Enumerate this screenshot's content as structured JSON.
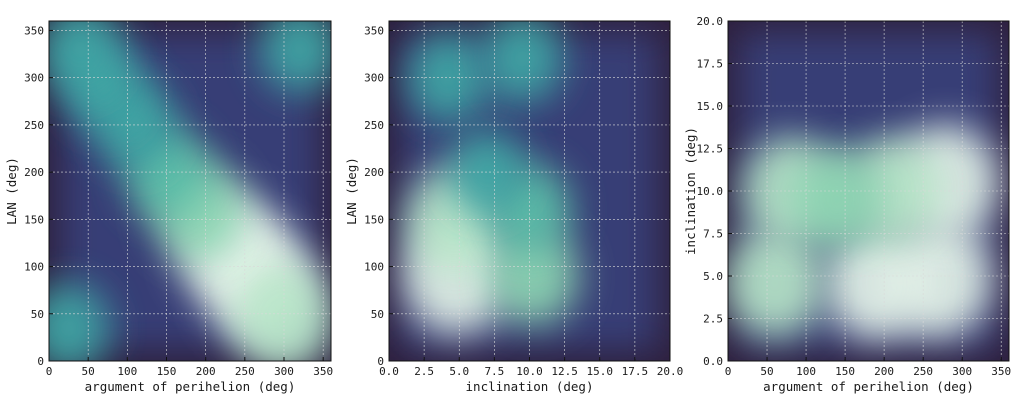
{
  "chart_data": [
    {
      "type": "heatmap",
      "xlabel": "argument of perihelion (deg)",
      "ylabel": "LAN (deg)",
      "xlim": [
        0,
        360
      ],
      "ylim": [
        0,
        360
      ],
      "xticks": [
        "0",
        "50",
        "100",
        "150",
        "200",
        "250",
        "300",
        "350"
      ],
      "yticks": [
        "0",
        "50",
        "100",
        "150",
        "200",
        "250",
        "300",
        "350"
      ],
      "grid": true,
      "colormap": "mako",
      "density_peaks": [
        {
          "x": 270,
          "y": 80,
          "density": 1.0
        },
        {
          "x": 230,
          "y": 120,
          "density": 0.9
        },
        {
          "x": 300,
          "y": 45,
          "density": 0.8
        },
        {
          "x": 190,
          "y": 160,
          "density": 0.65
        },
        {
          "x": 150,
          "y": 200,
          "density": 0.45
        },
        {
          "x": 110,
          "y": 250,
          "density": 0.4
        },
        {
          "x": 70,
          "y": 290,
          "density": 0.38
        },
        {
          "x": 40,
          "y": 330,
          "density": 0.4
        },
        {
          "x": 320,
          "y": 330,
          "density": 0.35
        },
        {
          "x": 25,
          "y": 35,
          "density": 0.4
        }
      ]
    },
    {
      "type": "heatmap",
      "xlabel": "inclination (deg)",
      "ylabel": "LAN (deg)",
      "xlim": [
        0,
        20
      ],
      "ylim": [
        0,
        360
      ],
      "xticks": [
        "0.0",
        "2.5",
        "5.0",
        "7.5",
        "10.0",
        "12.5",
        "15.0",
        "17.5",
        "20.0"
      ],
      "yticks": [
        "0",
        "50",
        "100",
        "150",
        "200",
        "250",
        "300",
        "350"
      ],
      "grid": true,
      "colormap": "mako",
      "density_peaks": [
        {
          "x": 4.8,
          "y": 90,
          "density": 1.0
        },
        {
          "x": 4.6,
          "y": 150,
          "density": 0.75
        },
        {
          "x": 10.3,
          "y": 90,
          "density": 0.6
        },
        {
          "x": 10.0,
          "y": 160,
          "density": 0.45
        },
        {
          "x": 4.2,
          "y": 300,
          "density": 0.4
        },
        {
          "x": 9.5,
          "y": 320,
          "density": 0.4
        },
        {
          "x": 7.0,
          "y": 200,
          "density": 0.3
        }
      ]
    },
    {
      "type": "heatmap",
      "xlabel": "argument of perihelion (deg)",
      "ylabel": "inclination (deg)",
      "xlim": [
        0,
        360
      ],
      "ylim": [
        0,
        20
      ],
      "xticks": [
        "0",
        "50",
        "100",
        "150",
        "200",
        "250",
        "300",
        "350"
      ],
      "yticks": [
        "0.0",
        "2.5",
        "5.0",
        "7.5",
        "10.0",
        "12.5",
        "15.0",
        "17.5",
        "20.0"
      ],
      "grid": true,
      "colormap": "mako",
      "density_peaks": [
        {
          "x": 270,
          "y": 4.8,
          "density": 1.0
        },
        {
          "x": 190,
          "y": 4.6,
          "density": 0.95
        },
        {
          "x": 60,
          "y": 4.6,
          "density": 0.85
        },
        {
          "x": 280,
          "y": 10.5,
          "density": 0.95
        },
        {
          "x": 210,
          "y": 10.0,
          "density": 0.8
        },
        {
          "x": 80,
          "y": 10.0,
          "density": 0.8
        },
        {
          "x": 140,
          "y": 9.5,
          "density": 0.6
        }
      ]
    }
  ]
}
